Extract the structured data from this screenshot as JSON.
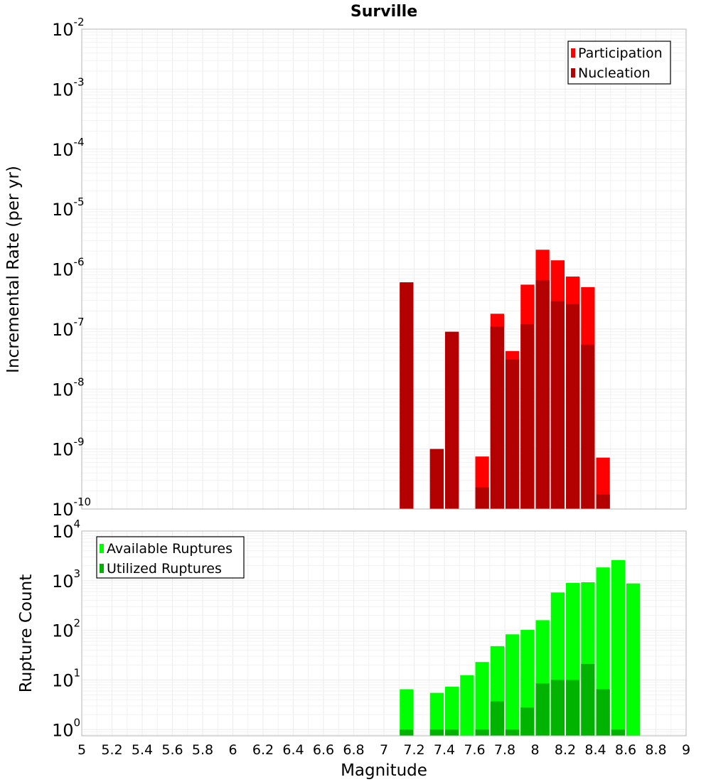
{
  "chart_data": [
    {
      "type": "bar",
      "title": "Surville",
      "xlabel": "",
      "ylabel": "Incremental Rate (per yr)",
      "y_scale": "log",
      "ylim": [
        1e-10,
        0.01
      ],
      "xlim": [
        5,
        9
      ],
      "bin_width": 0.1,
      "grid": true,
      "legend_position": "top-right",
      "series": [
        {
          "name": "Participation",
          "color": "#ff0000",
          "x": [
            7.15,
            7.35,
            7.45,
            7.65,
            7.75,
            7.85,
            7.95,
            8.05,
            8.15,
            8.25,
            8.35,
            8.45
          ],
          "values": [
            6e-07,
            1e-09,
            9e-08,
            7.5e-10,
            1.8e-07,
            4.3e-08,
            5.5e-07,
            2.1e-06,
            1.4e-06,
            7.5e-07,
            5e-07,
            7.2e-10
          ]
        },
        {
          "name": "Nucleation",
          "color": "#b30000",
          "x": [
            7.15,
            7.35,
            7.45,
            7.65,
            7.75,
            7.85,
            7.95,
            8.05,
            8.15,
            8.25,
            8.35,
            8.45
          ],
          "values": [
            6e-07,
            1e-09,
            9e-08,
            2.3e-10,
            1.1e-07,
            3.1e-08,
            1.2e-07,
            6.5e-07,
            2.9e-07,
            2.6e-07,
            5.5e-08,
            1.75e-10
          ]
        }
      ]
    },
    {
      "type": "bar",
      "title": "",
      "xlabel": "Magnitude",
      "ylabel": "Rupture Count",
      "y_scale": "log",
      "ylim": [
        0.75,
        10000.0
      ],
      "xlim": [
        5,
        9
      ],
      "bin_width": 0.1,
      "grid": true,
      "legend_position": "top-left",
      "x_ticks": [
        "5",
        "5.2",
        "5.4",
        "5.6",
        "5.8",
        "6",
        "6.2",
        "6.4",
        "6.6",
        "6.8",
        "7",
        "7.2",
        "7.4",
        "7.6",
        "7.8",
        "8",
        "8.2",
        "8.4",
        "8.6",
        "8.8",
        "9"
      ],
      "series": [
        {
          "name": "Available Ruptures",
          "color": "#00ff00",
          "x": [
            7.15,
            7.35,
            7.45,
            7.55,
            7.65,
            7.75,
            7.85,
            7.95,
            8.05,
            8.15,
            8.25,
            8.35,
            8.45,
            8.55,
            8.65
          ],
          "values": [
            6.5,
            5.5,
            7.3,
            12.5,
            23,
            48,
            83,
            102,
            160,
            580,
            900,
            930,
            1850,
            2600,
            880
          ]
        },
        {
          "name": "Utilized Ruptures",
          "color": "#00b300",
          "x": [
            7.15,
            7.35,
            7.45,
            7.65,
            7.75,
            7.85,
            7.95,
            8.05,
            8.15,
            8.25,
            8.35,
            8.45,
            8.55
          ],
          "values": [
            1,
            1,
            1,
            1,
            3.7,
            1,
            2.8,
            8.5,
            10,
            10,
            21,
            6.5,
            1
          ]
        }
      ]
    }
  ]
}
